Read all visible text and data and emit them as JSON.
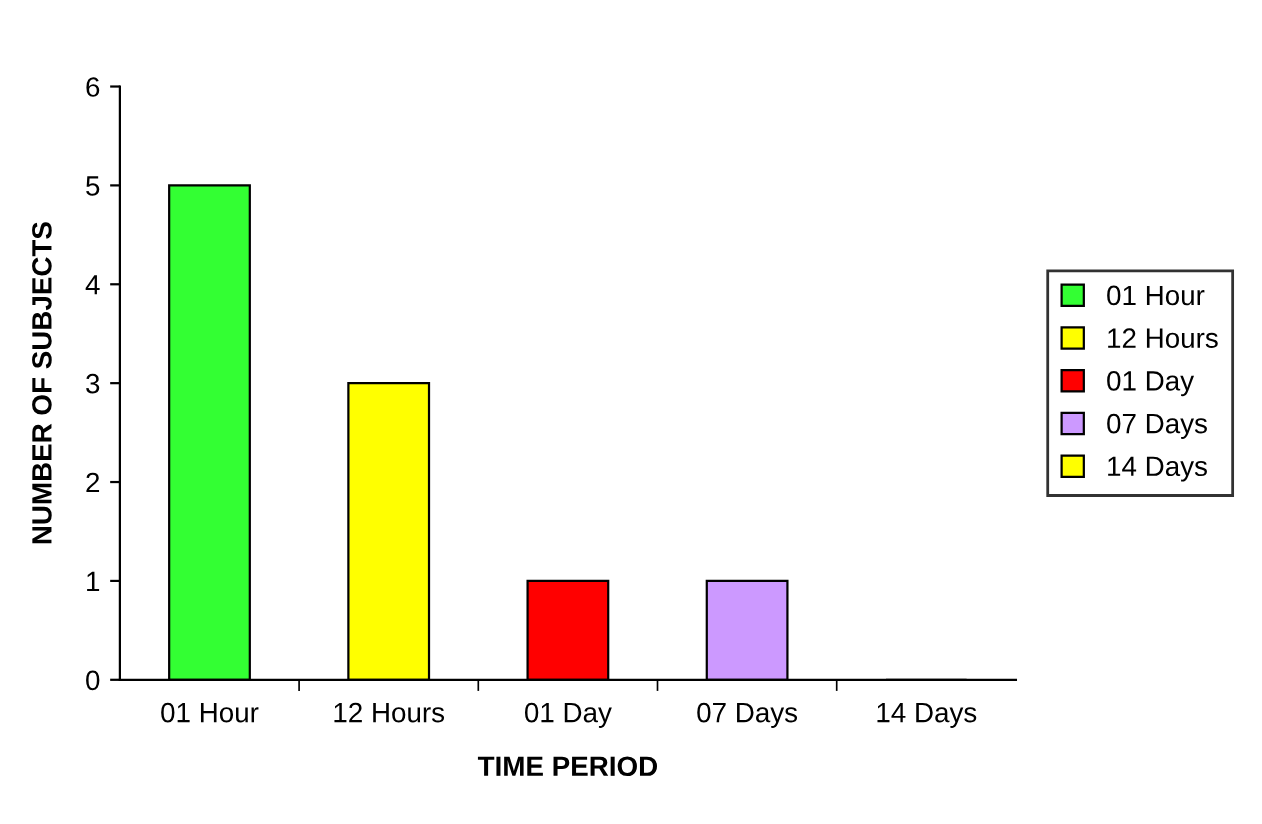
{
  "chart_data": {
    "type": "bar",
    "xlabel": "TIME PERIOD",
    "ylabel": "NUMBER OF SUBJECTS",
    "categories": [
      "01 Hour",
      "12 Hours",
      "01 Day",
      "07 Days",
      "14 Days"
    ],
    "series": [
      {
        "name": "01 Hour",
        "color": "#33ff33",
        "values": [
          5,
          null,
          null,
          null,
          null
        ]
      },
      {
        "name": "12 Hours",
        "color": "#ffff00",
        "values": [
          null,
          3,
          null,
          null,
          null
        ]
      },
      {
        "name": "01 Day",
        "color": "#ff0000",
        "values": [
          null,
          null,
          1,
          null,
          null
        ]
      },
      {
        "name": "07 Days",
        "color": "#cc99ff",
        "values": [
          null,
          null,
          null,
          1,
          null
        ]
      },
      {
        "name": "14 Days",
        "color": "#ffff00",
        "values": [
          null,
          null,
          null,
          null,
          0
        ]
      }
    ],
    "ylim": [
      0,
      6
    ],
    "yticks": [
      0,
      1,
      2,
      3,
      4,
      5,
      6
    ],
    "grid": false,
    "legend": "right"
  }
}
